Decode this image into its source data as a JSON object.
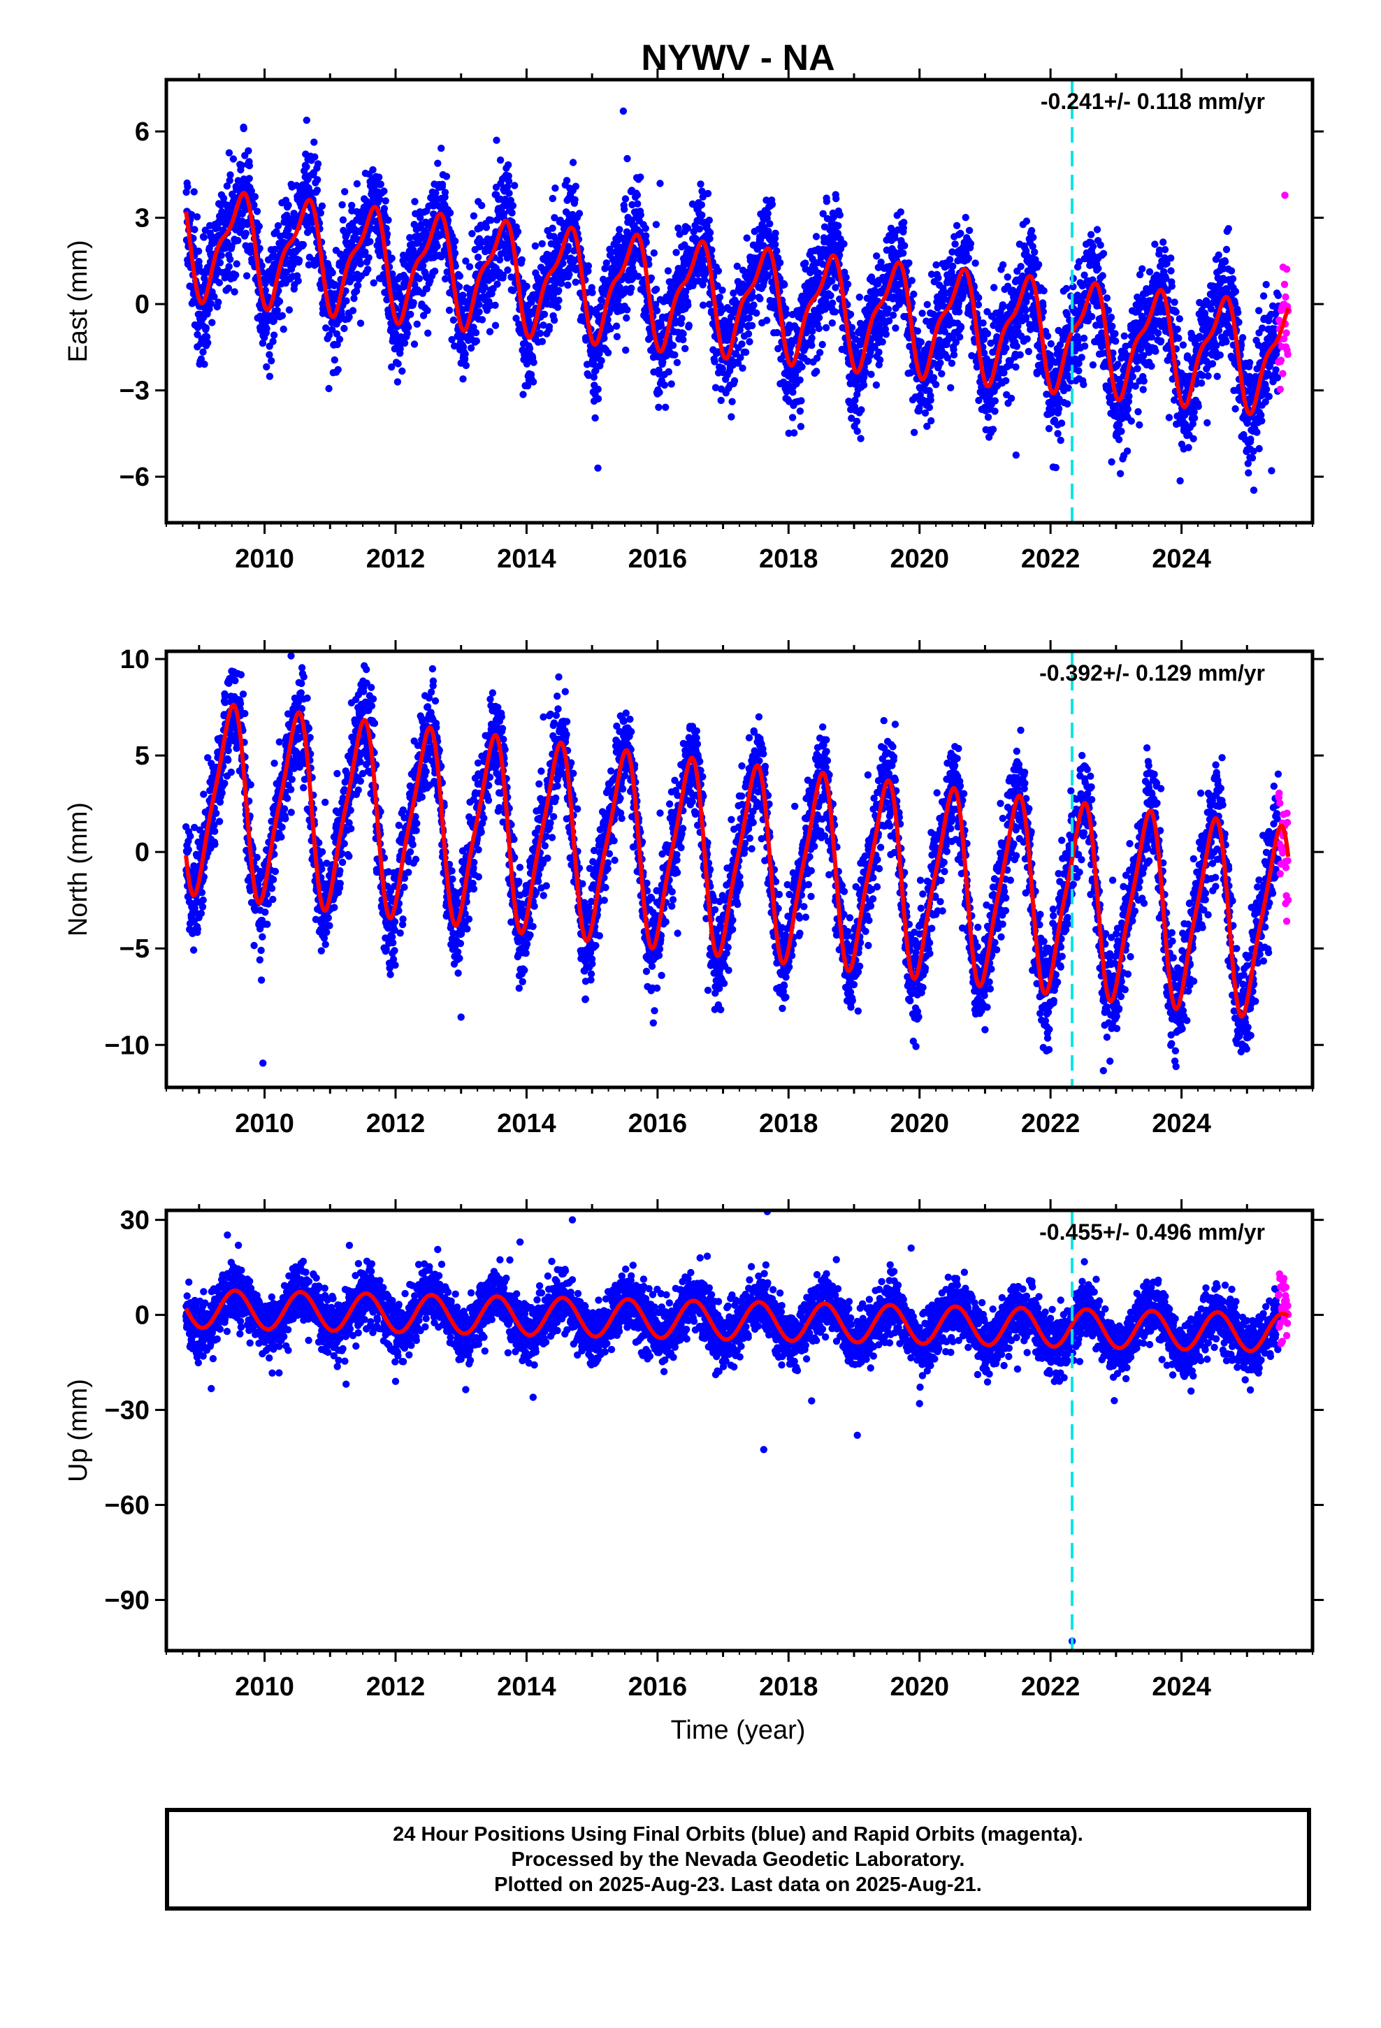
{
  "title": "NYWV - NA",
  "x_axis": {
    "label": "Time (year)",
    "range": [
      2008.5,
      2026.0
    ],
    "tick_labels": [
      "2010",
      "2012",
      "2014",
      "2016",
      "2018",
      "2020",
      "2022",
      "2024"
    ]
  },
  "colors": {
    "final_orbits": "#0000ff",
    "rapid_orbits": "#ff00ff",
    "model_fit": "#ff0000",
    "event_marker": "#00e5e5"
  },
  "event_marker_year": 2022.33,
  "chart_data": [
    {
      "type": "scatter",
      "component": "East",
      "ylabel": "East (mm)",
      "ylim": [
        -7.6,
        7.8
      ],
      "yticks": [
        6,
        3,
        0,
        -3,
        -6
      ],
      "ytick_labels": [
        "6",
        "3",
        "0",
        "−3",
        "−6"
      ],
      "rate_label": "-0.241+/- 0.118 mm/yr",
      "rate_mm_per_yr": -0.241,
      "rate_sigma": 0.118,
      "model": {
        "offset": 2.2,
        "annual_amp": 1.7,
        "annual_phase": 0.6,
        "semi_amp": 0.6,
        "semi_phase": 0.75,
        "noise": 0.95
      },
      "series": [
        {
          "name": "Final Orbits",
          "start": 2008.8,
          "end": 2025.48
        },
        {
          "name": "Rapid Orbits",
          "start": 2025.48,
          "end": 2025.63
        }
      ]
    },
    {
      "type": "scatter",
      "component": "North",
      "ylabel": "North (mm)",
      "ylim": [
        -12.2,
        10.4
      ],
      "yticks": [
        10,
        5,
        0,
        -5,
        -10
      ],
      "ytick_labels": [
        "10",
        "5",
        "0",
        "−5",
        "−10"
      ],
      "rate_label": "-0.392+/- 0.129 mm/yr",
      "rate_mm_per_yr": -0.392,
      "rate_sigma": 0.129,
      "model": {
        "offset": 2.9,
        "annual_amp": 4.7,
        "annual_phase": 0.47,
        "semi_amp": 1.0,
        "semi_phase": 0.6,
        "noise": 1.3
      },
      "series": [
        {
          "name": "Final Orbits",
          "start": 2008.8,
          "end": 2025.48
        },
        {
          "name": "Rapid Orbits",
          "start": 2025.48,
          "end": 2025.63
        }
      ]
    },
    {
      "type": "scatter",
      "component": "Up",
      "ylabel": "Up (mm)",
      "ylim": [
        -106,
        33
      ],
      "yticks": [
        30,
        0,
        -30,
        -60,
        -90
      ],
      "ytick_labels": [
        "30",
        "0",
        "−30",
        "−60",
        "−90"
      ],
      "rate_label": "-0.455+/- 0.496 mm/yr",
      "rate_mm_per_yr": -0.455,
      "rate_sigma": 0.496,
      "outliers": [
        [
          2009.6,
          22
        ],
        [
          2013.9,
          23
        ],
        [
          2014.7,
          30
        ],
        [
          2014.1,
          -26
        ],
        [
          2019.05,
          -38
        ],
        [
          2020.0,
          -28
        ],
        [
          2022.33,
          -103
        ],
        [
          2012.0,
          -21
        ]
      ],
      "model": {
        "offset": 2.0,
        "annual_amp": 6.0,
        "annual_phase": 0.55,
        "semi_amp": 0.0,
        "semi_phase": 0.0,
        "noise": 4.6
      },
      "series": [
        {
          "name": "Final Orbits",
          "start": 2008.8,
          "end": 2025.48
        },
        {
          "name": "Rapid Orbits",
          "start": 2025.48,
          "end": 2025.63
        }
      ]
    }
  ],
  "footer": {
    "line1": "24 Hour Positions Using Final Orbits (blue) and Rapid Orbits (magenta).",
    "line2": "Processed by the Nevada Geodetic Laboratory.",
    "line3": "Plotted on 2025-Aug-23. Last data on 2025-Aug-21."
  }
}
